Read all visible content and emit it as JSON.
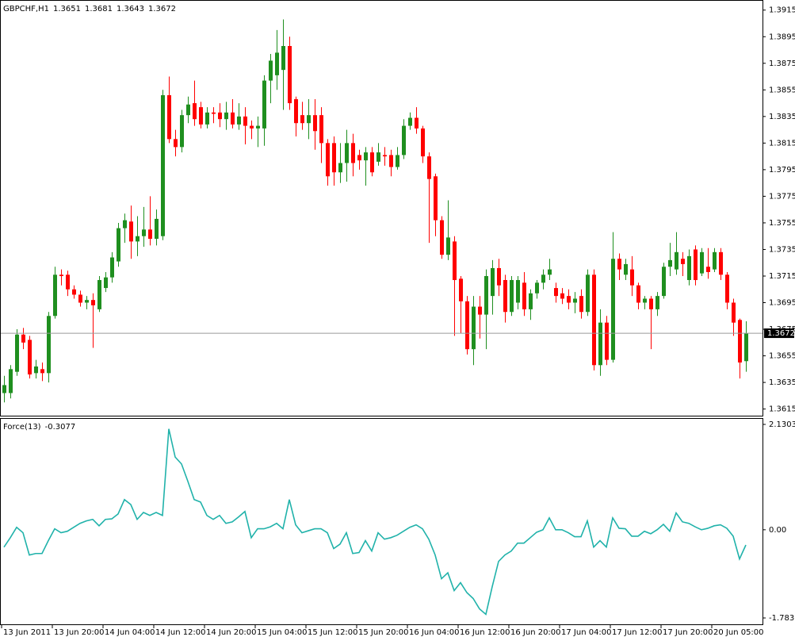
{
  "chart_data": [
    {
      "type": "candlestick",
      "title": "GBPCHF,H1",
      "up_color": "#1f8f1f",
      "down_color": "#ff0000",
      "price_line_color": "#9a9a9a",
      "categories": [
        "13 Jun 2011",
        null,
        null,
        null,
        null,
        null,
        null,
        null,
        "13 Jun 20:00",
        null,
        null,
        null,
        null,
        null,
        null,
        null,
        "14 Jun 04:00",
        null,
        null,
        null,
        null,
        null,
        null,
        null,
        "14 Jun 12:00",
        null,
        null,
        null,
        null,
        null,
        null,
        null,
        "14 Jun 20:00",
        null,
        null,
        null,
        null,
        null,
        null,
        null,
        "15 Jun 04:00",
        null,
        null,
        null,
        null,
        null,
        null,
        null,
        "15 Jun 12:00",
        null,
        null,
        null,
        null,
        null,
        null,
        null,
        "15 Jun 20:00",
        null,
        null,
        null,
        null,
        null,
        null,
        null,
        "16 Jun 04:00",
        null,
        null,
        null,
        null,
        null,
        null,
        null,
        "16 Jun 12:00",
        null,
        null,
        null,
        null,
        null,
        null,
        null,
        "16 Jun 20:00",
        null,
        null,
        null,
        null,
        null,
        null,
        null,
        "17 Jun 04:00",
        null,
        null,
        null,
        null,
        null,
        null,
        null,
        "17 Jun 12:00",
        null,
        null,
        null,
        null,
        null,
        null,
        null,
        "17 Jun 20:00",
        null,
        null,
        null,
        null,
        null,
        null,
        null,
        "20 Jun 05:00",
        null,
        null,
        null,
        null,
        null
      ],
      "open": [
        1.3627,
        1.3627,
        1.3643,
        1.3671,
        1.3667,
        1.3642,
        1.3645,
        1.3642,
        1.3685,
        1.3716,
        1.3716,
        1.3705,
        1.3701,
        1.3695,
        1.3697,
        1.369,
        1.3706,
        1.3714,
        1.3726,
        1.3751,
        1.3756,
        1.3741,
        1.3745,
        1.375,
        1.3743,
        1.3745,
        1.3851,
        1.3818,
        1.3812,
        1.3836,
        1.3845,
        1.3842,
        1.3829,
        1.3838,
        1.3838,
        1.3833,
        1.3838,
        1.3829,
        1.3835,
        1.3828,
        1.3826,
        1.3826,
        1.3862,
        1.3866,
        1.387,
        1.3888,
        1.3848,
        1.3836,
        1.383,
        1.3836,
        1.3836,
        1.3815,
        1.3815,
        1.3793,
        1.38,
        1.3815,
        1.3806,
        1.3802,
        1.3808,
        1.3801,
        1.3806,
        1.3806,
        1.3797,
        1.3806,
        1.3828,
        1.3834,
        1.3826,
        1.3805,
        1.379,
        1.3757,
        1.3731,
        1.3741,
        1.3713,
        1.3696,
        1.366,
        1.3692,
        1.3686,
        1.37,
        1.3721,
        1.3712,
        1.3688,
        1.3695,
        1.371,
        1.369,
        1.3702,
        1.371,
        1.3716,
        1.3706,
        1.3702,
        1.37,
        1.3695,
        1.37,
        1.3688,
        1.3716,
        1.3648,
        1.368,
        1.3652,
        1.3728,
        1.3716,
        1.372,
        1.3708,
        1.3695,
        1.3698,
        1.369,
        1.37,
        1.3722,
        1.372,
        1.3728,
        1.3712,
        1.3735,
        1.3717,
        1.3722,
        1.372,
        1.3733,
        1.3716,
        1.3695,
        1.3682,
        1.3651
      ],
      "high": [
        1.364,
        1.3648,
        1.3675,
        1.3676,
        1.367,
        1.3652,
        1.365,
        1.3688,
        1.3722,
        1.372,
        1.3719,
        1.3708,
        1.3704,
        1.37,
        1.3702,
        1.3715,
        1.3718,
        1.3733,
        1.3755,
        1.3762,
        1.3768,
        1.376,
        1.3767,
        1.3775,
        1.3765,
        1.3855,
        1.3865,
        1.3825,
        1.384,
        1.385,
        1.3862,
        1.3846,
        1.3842,
        1.3842,
        1.3845,
        1.3846,
        1.3848,
        1.3845,
        1.3842,
        1.3832,
        1.3835,
        1.3866,
        1.3882,
        1.39,
        1.3908,
        1.3895,
        1.385,
        1.3846,
        1.3848,
        1.3848,
        1.3842,
        1.3818,
        1.382,
        1.3815,
        1.3825,
        1.3822,
        1.381,
        1.3812,
        1.3812,
        1.3815,
        1.3812,
        1.381,
        1.3812,
        1.3833,
        1.3838,
        1.3842,
        1.3828,
        1.3808,
        1.3792,
        1.376,
        1.3772,
        1.3745,
        1.3715,
        1.37,
        1.37,
        1.37,
        1.372,
        1.3727,
        1.3728,
        1.3716,
        1.3715,
        1.3715,
        1.3718,
        1.3705,
        1.3712,
        1.372,
        1.3728,
        1.371,
        1.3706,
        1.3705,
        1.3703,
        1.3705,
        1.372,
        1.372,
        1.369,
        1.3685,
        1.3748,
        1.3732,
        1.3728,
        1.373,
        1.371,
        1.37,
        1.37,
        1.3703,
        1.3725,
        1.374,
        1.3748,
        1.3733,
        1.3735,
        1.3738,
        1.3736,
        1.3736,
        1.3736,
        1.3736,
        1.3718,
        1.3698,
        1.3683,
        1.3681
      ],
      "low": [
        1.362,
        1.3623,
        1.364,
        1.366,
        1.3638,
        1.3638,
        1.3636,
        1.3635,
        1.3683,
        1.3708,
        1.37,
        1.3698,
        1.3692,
        1.369,
        1.3661,
        1.3688,
        1.3703,
        1.371,
        1.3722,
        1.374,
        1.3728,
        1.373,
        1.3737,
        1.3738,
        1.3738,
        1.3742,
        1.3815,
        1.3805,
        1.3808,
        1.383,
        1.3828,
        1.3826,
        1.3826,
        1.383,
        1.3827,
        1.3825,
        1.3826,
        1.3825,
        1.3814,
        1.3818,
        1.3812,
        1.3813,
        1.3845,
        1.3855,
        1.384,
        1.384,
        1.382,
        1.3825,
        1.3818,
        1.381,
        1.38,
        1.3783,
        1.3783,
        1.3785,
        1.3786,
        1.379,
        1.3795,
        1.3783,
        1.379,
        1.3798,
        1.3798,
        1.379,
        1.3795,
        1.3803,
        1.3825,
        1.3822,
        1.38,
        1.374,
        1.3745,
        1.3728,
        1.3727,
        1.367,
        1.3672,
        1.3656,
        1.3648,
        1.3668,
        1.366,
        1.3686,
        1.37,
        1.368,
        1.3685,
        1.369,
        1.3685,
        1.3682,
        1.3698,
        1.3705,
        1.3712,
        1.3695,
        1.3694,
        1.369,
        1.3687,
        1.3683,
        1.3685,
        1.3644,
        1.364,
        1.3648,
        1.365,
        1.3712,
        1.3712,
        1.37,
        1.369,
        1.369,
        1.366,
        1.3685,
        1.3698,
        1.3715,
        1.3716,
        1.3715,
        1.3708,
        1.3708,
        1.3715,
        1.3713,
        1.3718,
        1.3712,
        1.369,
        1.367,
        1.3638,
        1.3643
      ],
      "close": [
        1.3633,
        1.3645,
        1.3671,
        1.3665,
        1.3641,
        1.3647,
        1.3642,
        1.3685,
        1.3716,
        1.3715,
        1.3705,
        1.3701,
        1.3695,
        1.3697,
        1.3693,
        1.3712,
        1.3714,
        1.3729,
        1.3751,
        1.3757,
        1.3741,
        1.3745,
        1.375,
        1.3743,
        1.3758,
        1.3851,
        1.3818,
        1.3812,
        1.3836,
        1.3844,
        1.3833,
        1.3829,
        1.3838,
        1.3837,
        1.3833,
        1.3838,
        1.3829,
        1.3835,
        1.3828,
        1.3826,
        1.3828,
        1.3862,
        1.3877,
        1.3883,
        1.3888,
        1.3845,
        1.383,
        1.383,
        1.3836,
        1.3824,
        1.3815,
        1.379,
        1.3793,
        1.38,
        1.3815,
        1.38,
        1.3802,
        1.3808,
        1.3793,
        1.3808,
        1.3805,
        1.3797,
        1.3806,
        1.3828,
        1.3834,
        1.3826,
        1.3805,
        1.3788,
        1.3757,
        1.3731,
        1.3744,
        1.3712,
        1.3696,
        1.366,
        1.3692,
        1.3686,
        1.3715,
        1.3721,
        1.3708,
        1.3688,
        1.3712,
        1.3712,
        1.369,
        1.3702,
        1.371,
        1.3716,
        1.372,
        1.37,
        1.3698,
        1.3695,
        1.3698,
        1.3688,
        1.3716,
        1.3648,
        1.368,
        1.3652,
        1.3728,
        1.372,
        1.3724,
        1.3708,
        1.3695,
        1.3698,
        1.369,
        1.37,
        1.3722,
        1.3727,
        1.3733,
        1.3724,
        1.373,
        1.3712,
        1.3733,
        1.3718,
        1.3733,
        1.3716,
        1.3695,
        1.368,
        1.365,
        1.3672
      ],
      "ylim": [
        1.361,
        1.3922
      ],
      "yticks": [
        1.3615,
        1.3635,
        1.3655,
        1.3675,
        1.3695,
        1.3715,
        1.3735,
        1.3755,
        1.3775,
        1.3795,
        1.3815,
        1.3835,
        1.3855,
        1.3875,
        1.3895,
        1.3915
      ]
    },
    {
      "type": "line",
      "title": "Force(13)",
      "color": "#20b2aa",
      "values": [
        -0.35,
        -0.16,
        0.05,
        -0.06,
        -0.51,
        -0.48,
        -0.48,
        -0.22,
        0.02,
        -0.06,
        -0.03,
        0.05,
        0.13,
        0.18,
        0.21,
        0.08,
        0.21,
        0.22,
        0.32,
        0.61,
        0.51,
        0.21,
        0.35,
        0.29,
        0.35,
        0.29,
        2.04,
        1.47,
        1.33,
        0.98,
        0.61,
        0.56,
        0.29,
        0.21,
        0.29,
        0.13,
        0.16,
        0.26,
        0.37,
        -0.16,
        0.02,
        0.02,
        0.06,
        0.13,
        0.02,
        0.61,
        0.1,
        -0.06,
        -0.02,
        0.02,
        0.02,
        -0.06,
        -0.38,
        -0.29,
        -0.06,
        -0.48,
        -0.46,
        -0.22,
        -0.43,
        -0.06,
        -0.19,
        -0.16,
        -0.11,
        -0.03,
        0.05,
        0.1,
        0.02,
        -0.19,
        -0.51,
        -0.99,
        -0.87,
        -1.23,
        -1.07,
        -1.27,
        -1.39,
        -1.6,
        -1.71,
        -1.15,
        -0.64,
        -0.51,
        -0.43,
        -0.27,
        -0.27,
        -0.16,
        -0.05,
        0.0,
        0.24,
        0.0,
        0.0,
        -0.06,
        -0.14,
        -0.14,
        0.18,
        -0.35,
        -0.22,
        -0.35,
        0.24,
        0.03,
        0.02,
        -0.13,
        -0.13,
        -0.03,
        -0.08,
        0.0,
        0.11,
        -0.03,
        0.34,
        0.16,
        0.13,
        0.06,
        0.0,
        0.03,
        0.08,
        0.1,
        0.03,
        -0.13,
        -0.59,
        -0.3077
      ],
      "ylim": [
        -1.9113,
        2.2425
      ],
      "yticks": [
        2.1303,
        {
          "value": 0,
          "label": "0.00"
        },
        -1.7831
      ]
    }
  ]
}
